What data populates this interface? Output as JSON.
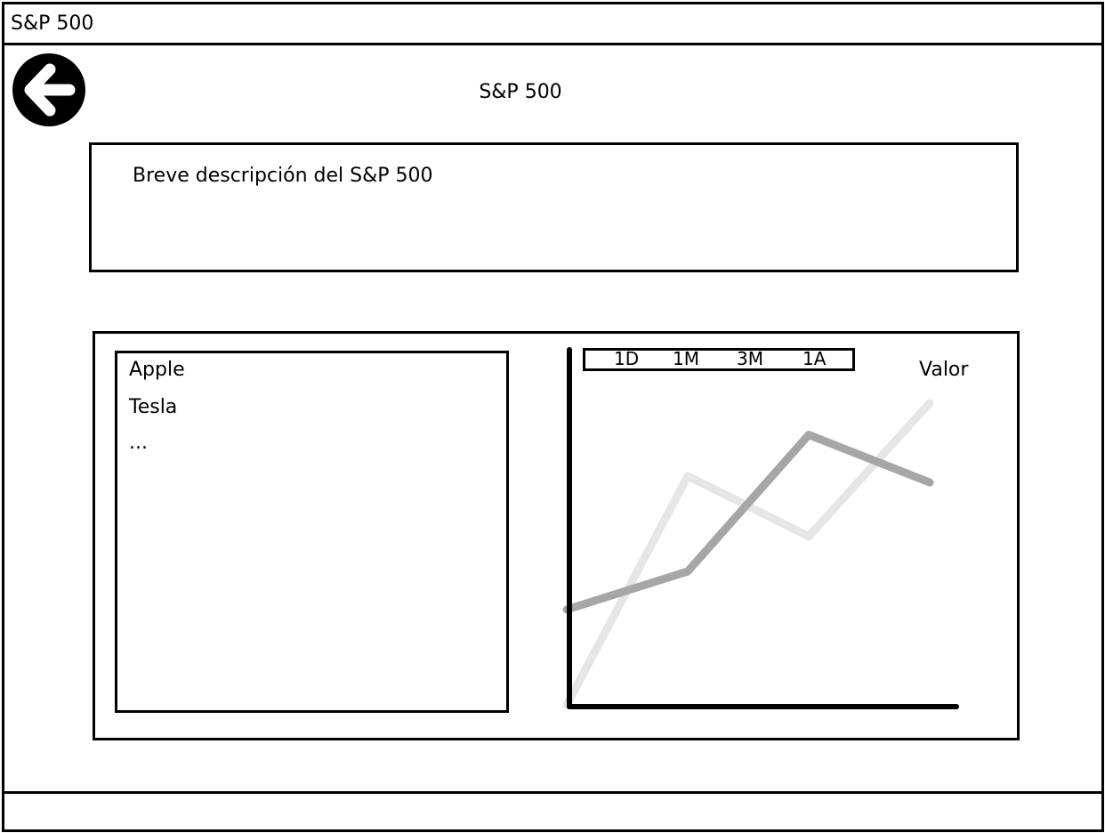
{
  "window": {
    "title": "S&P 500"
  },
  "header": {
    "back_icon": "back-arrow-icon",
    "title": "S&P 500"
  },
  "description": {
    "text": "Breve descripción del S&P 500"
  },
  "companies": {
    "items": [
      "Apple",
      "Tesla",
      "..."
    ]
  },
  "chart": {
    "range_tabs": [
      "1D",
      "1M",
      "3M",
      "1A"
    ],
    "ylabel": "Valor"
  },
  "chart_data": {
    "type": "line",
    "x": [
      0,
      1,
      2,
      3
    ],
    "series": [
      {
        "values": [
          0,
          72,
          53,
          95
        ],
        "color": "#e6e6e6"
      },
      {
        "values": [
          30,
          42,
          85,
          70
        ],
        "color": "#a6a6a6"
      }
    ],
    "xlabel": "",
    "ylabel": "Valor",
    "ylim": [
      0,
      100
    ],
    "grid": false
  }
}
